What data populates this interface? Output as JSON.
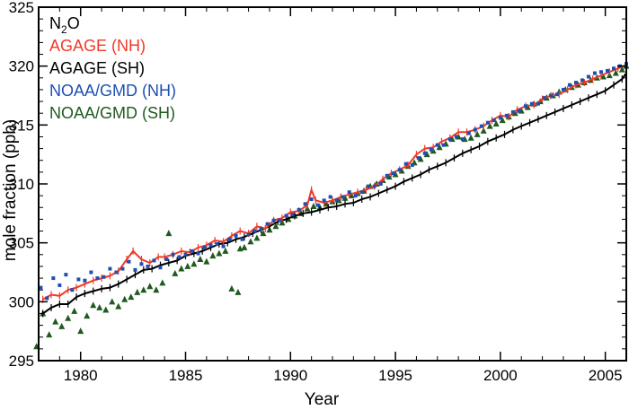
{
  "chart_data": {
    "type": "scatter",
    "title": "",
    "xlabel": "Year",
    "ylabel": "mole fraction (ppb)",
    "xlim": [
      1978,
      2006
    ],
    "ylim": [
      295,
      325
    ],
    "x_ticks": [
      1980,
      1985,
      1990,
      1995,
      2000,
      2005
    ],
    "y_ticks": [
      295,
      300,
      305,
      310,
      315,
      320,
      325
    ],
    "legend": {
      "placement": "top-left",
      "heading": {
        "text": "N",
        "subscript": "2",
        "suffix": "O"
      },
      "entries": [
        {
          "label": "AGAGE (NH)",
          "color": "#f03a28"
        },
        {
          "label": "AGAGE (SH)",
          "color": "#000000"
        },
        {
          "label": "NOAA/GMD (NH)",
          "color": "#1f4fb3"
        },
        {
          "label": "NOAA/GMD (SH)",
          "color": "#1f5a1f"
        }
      ]
    },
    "series": [
      {
        "name": "AGAGE (NH)",
        "color": "#f03a28",
        "style": "line",
        "x": [
          1978.2,
          1978.6,
          1979.0,
          1979.4,
          1979.8,
          1980.2,
          1980.6,
          1981.0,
          1981.4,
          1981.8,
          1982.2,
          1982.5,
          1982.9,
          1983.3,
          1983.7,
          1984.0,
          1984.4,
          1984.8,
          1985.2,
          1985.6,
          1986.0,
          1986.4,
          1986.8,
          1987.2,
          1987.6,
          1988.0,
          1988.4,
          1988.8,
          1989.2,
          1989.6,
          1990.0,
          1990.4,
          1990.8,
          1991.0,
          1991.2,
          1991.6,
          1992.0,
          1992.4,
          1992.8,
          1993.2,
          1993.6,
          1994.0,
          1994.4,
          1994.8,
          1995.2,
          1995.6,
          1996.0,
          1996.4,
          1996.8,
          1997.2,
          1997.6,
          1998.0,
          1998.4,
          1998.8,
          1999.2,
          1999.6,
          2000.0,
          2000.4,
          2000.8,
          2001.2,
          2001.6,
          2002.0,
          2002.4,
          2002.8,
          2003.2,
          2003.6,
          2004.0,
          2004.4,
          2004.8,
          2005.2,
          2005.6,
          2006.0
        ],
        "y": [
          300.2,
          300.6,
          300.5,
          301.0,
          301.2,
          301.5,
          301.8,
          302.0,
          302.2,
          302.6,
          303.6,
          304.3,
          303.6,
          303.3,
          303.8,
          303.8,
          304.0,
          304.3,
          304.2,
          304.6,
          304.8,
          305.2,
          305.1,
          305.6,
          306.0,
          305.8,
          306.4,
          306.2,
          306.9,
          307.1,
          307.6,
          307.7,
          308.2,
          309.5,
          308.6,
          308.4,
          308.6,
          308.9,
          309.1,
          309.3,
          309.5,
          309.8,
          310.4,
          310.9,
          311.2,
          311.6,
          312.5,
          313.0,
          313.1,
          313.6,
          313.9,
          314.4,
          314.4,
          314.6,
          314.9,
          315.4,
          315.8,
          315.7,
          316.3,
          316.6,
          316.7,
          317.2,
          317.5,
          317.6,
          318.0,
          318.4,
          318.6,
          318.9,
          319.2,
          319.5,
          319.8,
          320.1
        ]
      },
      {
        "name": "AGAGE (SH)",
        "color": "#000000",
        "style": "line",
        "x": [
          1978.2,
          1978.6,
          1979.0,
          1979.4,
          1979.8,
          1980.2,
          1980.6,
          1981.0,
          1981.4,
          1981.8,
          1982.2,
          1982.6,
          1983.0,
          1983.4,
          1983.8,
          1984.2,
          1984.6,
          1985.0,
          1985.4,
          1985.8,
          1986.2,
          1986.6,
          1987.0,
          1987.4,
          1987.8,
          1988.2,
          1988.6,
          1989.0,
          1989.4,
          1989.8,
          1990.2,
          1990.6,
          1991.0,
          1991.4,
          1991.8,
          1992.2,
          1992.6,
          1993.0,
          1993.4,
          1993.8,
          1994.2,
          1994.6,
          1995.0,
          1995.4,
          1995.8,
          1996.2,
          1996.6,
          1997.0,
          1997.4,
          1997.8,
          1998.2,
          1998.6,
          1999.0,
          1999.4,
          1999.8,
          2000.2,
          2000.6,
          2001.0,
          2001.4,
          2001.8,
          2002.2,
          2002.6,
          2003.0,
          2003.4,
          2003.8,
          2004.2,
          2004.6,
          2005.0,
          2005.4,
          2005.8,
          2006.0
        ],
        "y": [
          299.0,
          299.5,
          299.8,
          299.8,
          300.4,
          300.7,
          300.9,
          301.1,
          301.2,
          301.5,
          301.9,
          302.3,
          302.7,
          302.8,
          303.1,
          303.3,
          303.5,
          303.9,
          304.1,
          304.3,
          304.6,
          304.9,
          305.0,
          305.3,
          305.5,
          305.8,
          306.1,
          306.4,
          306.8,
          307.0,
          307.3,
          307.5,
          307.6,
          307.8,
          308.0,
          308.1,
          308.3,
          308.4,
          308.7,
          308.9,
          309.2,
          309.5,
          309.8,
          310.2,
          310.5,
          310.8,
          311.2,
          311.5,
          311.8,
          312.2,
          312.6,
          312.9,
          313.2,
          313.6,
          313.9,
          314.2,
          314.6,
          314.9,
          315.2,
          315.5,
          315.8,
          316.1,
          316.4,
          316.7,
          317.0,
          317.3,
          317.6,
          317.9,
          318.4,
          318.9,
          319.4
        ]
      },
      {
        "name": "NOAA/GMD (NH)",
        "color": "#1f4fb3",
        "style": "dots",
        "x": [
          1978.1,
          1978.4,
          1978.7,
          1979.0,
          1979.3,
          1979.6,
          1979.9,
          1980.2,
          1980.5,
          1980.8,
          1981.1,
          1981.4,
          1981.7,
          1982.0,
          1982.3,
          1982.6,
          1982.9,
          1983.2,
          1983.5,
          1983.8,
          1984.1,
          1984.4,
          1984.7,
          1985.0,
          1985.3,
          1985.6,
          1985.9,
          1986.2,
          1986.5,
          1986.8,
          1987.1,
          1987.4,
          1987.7,
          1988.0,
          1988.3,
          1988.6,
          1988.9,
          1989.2,
          1989.5,
          1989.8,
          1990.1,
          1990.4,
          1990.7,
          1991.0,
          1991.3,
          1991.6,
          1991.9,
          1992.2,
          1992.5,
          1992.8,
          1993.1,
          1993.4,
          1993.7,
          1994.0,
          1994.3,
          1994.6,
          1994.9,
          1995.2,
          1995.5,
          1995.8,
          1996.1,
          1996.4,
          1996.7,
          1997.0,
          1997.3,
          1997.6,
          1997.9,
          1998.2,
          1998.5,
          1998.8,
          1999.1,
          1999.4,
          1999.7,
          2000.0,
          2000.3,
          2000.6,
          2000.9,
          2001.2,
          2001.5,
          2001.8,
          2002.1,
          2002.4,
          2002.7,
          2003.0,
          2003.3,
          2003.6,
          2003.9,
          2004.2,
          2004.5,
          2004.8,
          2005.1,
          2005.4,
          2005.7,
          2006.0
        ],
        "y": [
          301.2,
          300.3,
          302.0,
          301.4,
          302.3,
          301.0,
          301.9,
          301.8,
          302.5,
          302.0,
          302.1,
          302.8,
          302.5,
          302.8,
          303.4,
          302.7,
          303.2,
          303.0,
          303.5,
          302.9,
          303.6,
          304.0,
          303.8,
          304.0,
          304.3,
          304.1,
          304.6,
          304.8,
          304.9,
          304.7,
          305.3,
          305.6,
          305.3,
          305.7,
          306.0,
          306.2,
          306.6,
          306.9,
          306.9,
          307.3,
          307.4,
          307.8,
          308.3,
          308.7,
          308.2,
          308.6,
          308.9,
          308.6,
          308.9,
          309.3,
          309.0,
          309.3,
          309.8,
          309.8,
          310.0,
          310.7,
          310.9,
          311.2,
          311.7,
          311.6,
          312.2,
          312.6,
          312.9,
          313.3,
          313.3,
          313.8,
          314.0,
          313.8,
          314.3,
          314.6,
          314.9,
          315.2,
          315.4,
          315.6,
          315.8,
          316.1,
          316.2,
          316.6,
          316.8,
          316.8,
          317.3,
          317.5,
          317.6,
          318.0,
          318.4,
          318.6,
          318.8,
          319.1,
          319.4,
          319.5,
          319.6,
          319.8,
          320.0,
          320.2
        ]
      },
      {
        "name": "NOAA/GMD (SH)",
        "color": "#1f5a1f",
        "style": "triangles",
        "x": [
          1977.9,
          1978.2,
          1978.5,
          1978.8,
          1979.1,
          1979.4,
          1979.7,
          1980.0,
          1980.3,
          1980.6,
          1980.9,
          1981.2,
          1981.5,
          1981.8,
          1982.1,
          1982.4,
          1982.7,
          1983.0,
          1983.3,
          1983.6,
          1983.9,
          1984.2,
          1984.5,
          1984.8,
          1985.1,
          1985.4,
          1985.7,
          1986.0,
          1986.3,
          1986.6,
          1986.9,
          1987.2,
          1987.5,
          1987.6,
          1987.8,
          1988.1,
          1988.4,
          1988.7,
          1989.0,
          1989.3,
          1989.6,
          1989.9,
          1990.2,
          1990.5,
          1990.8,
          1991.1,
          1991.4,
          1991.7,
          1992.0,
          1992.3,
          1992.6,
          1992.9,
          1993.2,
          1993.5,
          1993.8,
          1994.1,
          1994.4,
          1994.7,
          1995.0,
          1995.3,
          1995.6,
          1995.9,
          1996.2,
          1996.5,
          1996.8,
          1997.1,
          1997.4,
          1997.7,
          1998.0,
          1998.3,
          1998.6,
          1998.9,
          1999.2,
          1999.5,
          1999.8,
          2000.1,
          2000.4,
          2000.7,
          2001.0,
          2001.3,
          2001.6,
          2001.9,
          2002.2,
          2002.5,
          2002.8,
          2003.1,
          2003.4,
          2003.7,
          2004.0,
          2004.3,
          2004.6,
          2004.9,
          2005.2,
          2005.5,
          2005.8,
          2006.0
        ],
        "y": [
          296.2,
          299.0,
          297.2,
          298.3,
          297.9,
          298.6,
          299.2,
          297.5,
          298.8,
          299.7,
          299.5,
          299.3,
          300.0,
          299.6,
          300.2,
          300.4,
          300.8,
          301.0,
          301.3,
          301.0,
          301.6,
          305.8,
          302.4,
          302.8,
          303.0,
          303.2,
          303.6,
          303.4,
          303.9,
          304.1,
          304.3,
          301.1,
          300.8,
          304.5,
          304.6,
          305.1,
          305.4,
          305.8,
          306.1,
          306.4,
          306.7,
          307.0,
          307.3,
          307.5,
          307.9,
          308.1,
          308.0,
          308.3,
          308.5,
          308.6,
          308.8,
          309.0,
          309.2,
          309.4,
          309.8,
          310.0,
          310.3,
          310.6,
          310.8,
          311.1,
          311.5,
          311.8,
          312.1,
          312.5,
          312.8,
          313.1,
          313.4,
          313.8,
          314.0,
          313.8,
          313.9,
          314.2,
          314.5,
          314.9,
          315.1,
          315.4,
          315.7,
          316.0,
          316.2,
          316.5,
          316.8,
          317.0,
          317.3,
          317.5,
          317.8,
          318.0,
          318.2,
          318.4,
          318.6,
          318.8,
          319.0,
          319.1,
          319.2,
          319.4,
          319.7,
          320.0
        ]
      }
    ]
  }
}
